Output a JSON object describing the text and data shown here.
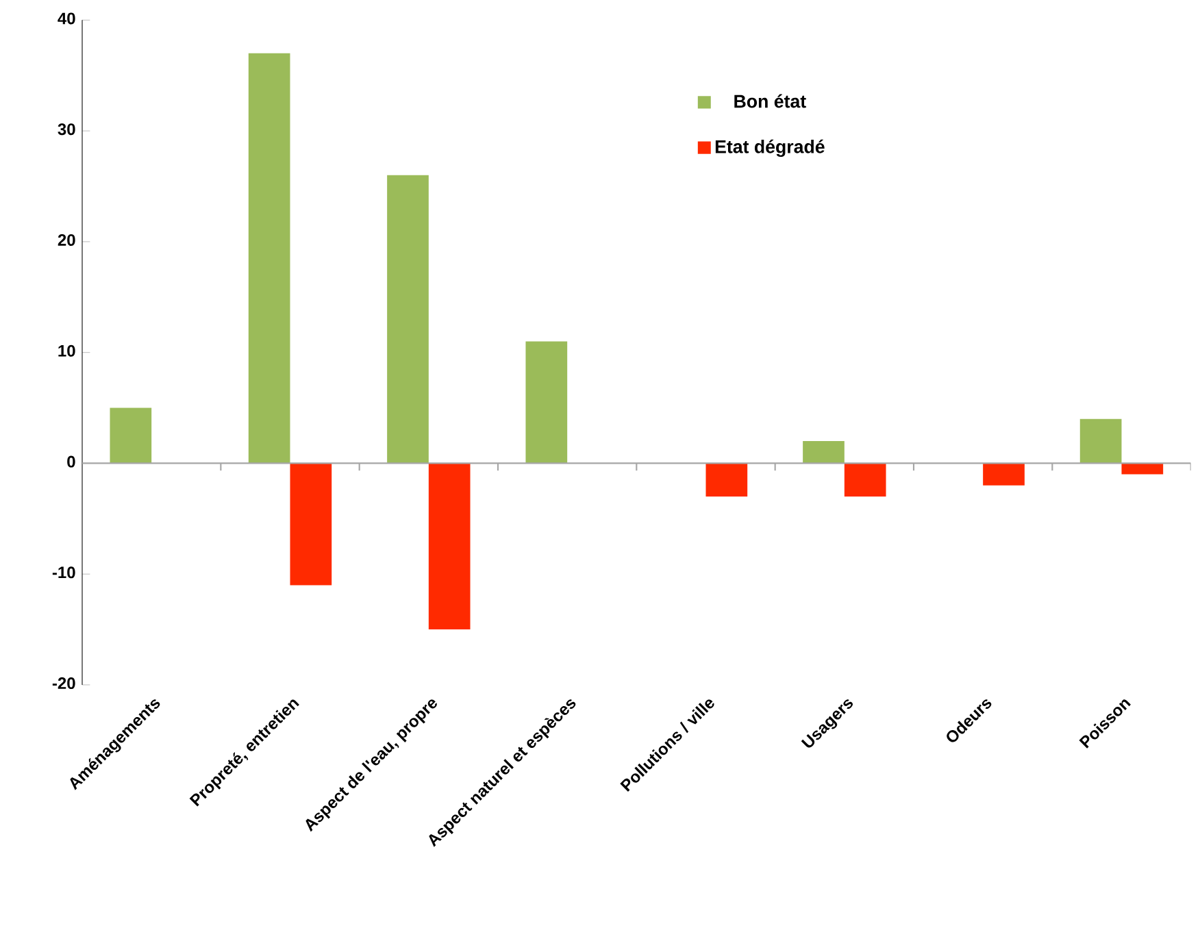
{
  "chart_data": {
    "type": "bar",
    "categories": [
      "Aménagements",
      "Propreté, entretien",
      "Aspect de l'eau, propre",
      "Aspect naturel et espèces",
      "Pollutions / ville",
      "Usagers",
      "Odeurs",
      "Poisson"
    ],
    "series": [
      {
        "name": "Bon état",
        "color": "#9bbb59",
        "values": [
          5,
          37,
          26,
          11,
          null,
          2,
          null,
          4
        ]
      },
      {
        "name": "Etat dégradé",
        "color": "#ff2a00",
        "values": [
          null,
          -11,
          -15,
          null,
          -3,
          -3,
          -2,
          -1
        ]
      }
    ],
    "ylim": [
      -20,
      40
    ],
    "yticks": [
      -20,
      -10,
      0,
      10,
      20,
      30,
      40
    ],
    "legend": "top right"
  }
}
